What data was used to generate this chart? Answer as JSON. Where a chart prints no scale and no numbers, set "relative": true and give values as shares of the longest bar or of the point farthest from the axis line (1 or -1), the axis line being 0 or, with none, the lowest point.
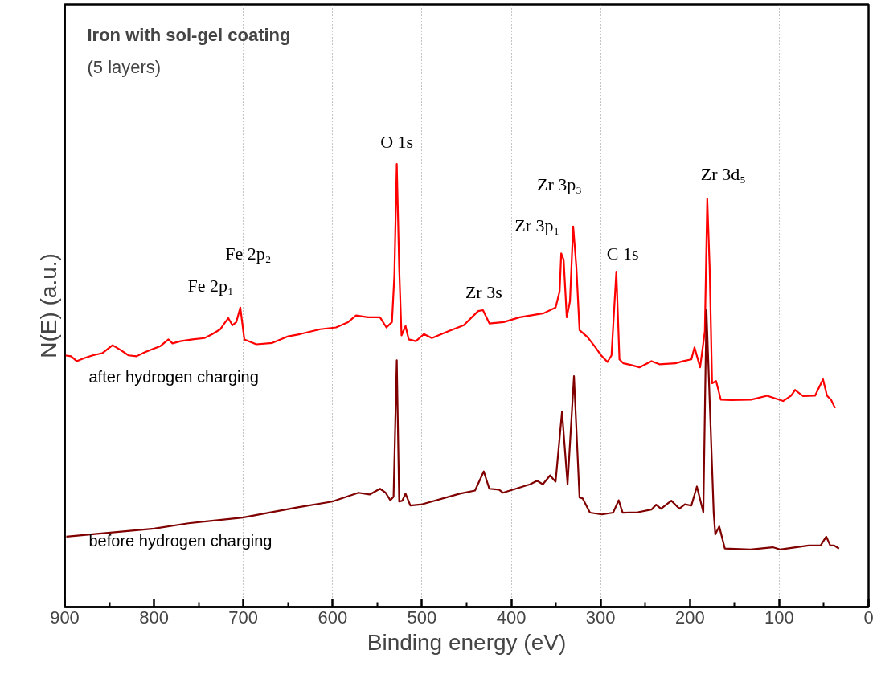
{
  "chart_data": {
    "type": "line",
    "title": "Iron with sol-gel coating",
    "subtitle": "(5 layers)",
    "xlabel": "Binding energy (eV)",
    "ylabel": "N(E) (a.u.)",
    "relative": true,
    "xlim": [
      900,
      0
    ],
    "xticks": [
      900,
      800,
      700,
      600,
      500,
      400,
      300,
      200,
      100,
      0
    ],
    "grid": "x",
    "tick_labels": "x",
    "line_style": "solid",
    "marker": "none",
    "series": [
      {
        "name": "after hydrogen charging",
        "color": "#ff0000",
        "x": [
          900,
          892.9,
          886.6,
          877.7,
          868.7,
          858,
          846.4,
          837.4,
          828.5,
          819.6,
          810.6,
          801.7,
          792.8,
          783.8,
          779.3,
          770.4,
          757,
          743.6,
          734.7,
          725.7,
          721.3,
          716.8,
          712.3,
          707.9,
          703.4,
          698.9,
          685.5,
          667.6,
          649.8,
          636.4,
          614,
          596.2,
          582.7,
          573.8,
          560.4,
          547,
          539.8,
          533.6,
          530.9,
          528.2,
          525.5,
          522.9,
          518.4,
          514.8,
          506.8,
          497.8,
          488.9,
          471,
          453.2,
          437.1,
          431.7,
          424.5,
          408.5,
          390.6,
          363.8,
          350.4,
          345.9,
          344.1,
          341.4,
          337.9,
          334.3,
          330.7,
          327.1,
          323.6,
          314.6,
          305.7,
          299.4,
          292.3,
          287.8,
          282.4,
          278.9,
          274.4,
          265.5,
          256.5,
          243.1,
          234.2,
          216.3,
          207.4,
          198.4,
          194.9,
          188.6,
          183.3,
          180.6,
          177.9,
          175.2,
          170.7,
          165.4,
          153.8,
          131.4,
          113.6,
          95.7,
          86.7,
          82.3,
          73.3,
          59.9,
          51,
          46.5,
          42,
          37.5
        ],
        "values": [
          0.568,
          0.566,
          0.555,
          0.562,
          0.568,
          0.573,
          0.591,
          0.58,
          0.568,
          0.566,
          0.575,
          0.582,
          0.589,
          0.604,
          0.595,
          0.6,
          0.604,
          0.607,
          0.616,
          0.627,
          0.64,
          0.652,
          0.636,
          0.643,
          0.676,
          0.604,
          0.593,
          0.596,
          0.611,
          0.616,
          0.627,
          0.631,
          0.643,
          0.658,
          0.654,
          0.654,
          0.631,
          0.643,
          0.748,
          1.0,
          0.766,
          0.613,
          0.634,
          0.604,
          0.6,
          0.616,
          0.607,
          0.622,
          0.636,
          0.668,
          0.67,
          0.64,
          0.643,
          0.654,
          0.663,
          0.676,
          0.712,
          0.798,
          0.784,
          0.654,
          0.69,
          0.859,
          0.766,
          0.625,
          0.609,
          0.586,
          0.568,
          0.553,
          0.568,
          0.757,
          0.559,
          0.55,
          0.546,
          0.541,
          0.555,
          0.548,
          0.55,
          0.555,
          0.559,
          0.586,
          0.541,
          0.622,
          0.921,
          0.766,
          0.505,
          0.51,
          0.468,
          0.467,
          0.468,
          0.477,
          0.465,
          0.477,
          0.49,
          0.476,
          0.477,
          0.514,
          0.477,
          0.468,
          0.449
        ]
      },
      {
        "name": "before hydrogen charging",
        "color": "#800000",
        "x": [
          898.2,
          800,
          761.5,
          700.7,
          639,
          600.6,
          571.1,
          558.6,
          547,
          540.7,
          535.4,
          531.8,
          528.2,
          525.5,
          522,
          518.4,
          513,
          499.6,
          457.6,
          440.6,
          430.8,
          424.6,
          413.8,
          409.4,
          379,
          370.9,
          364.7,
          356.6,
          350.4,
          343.2,
          337,
          329.8,
          323.6,
          320,
          311.9,
          298.5,
          286,
          279.8,
          275.3,
          258.3,
          243.1,
          237.8,
          232.4,
          220.8,
          211.9,
          205.6,
          198.4,
          192.2,
          185,
          181.5,
          173.4,
          171.6,
          167.2,
          160.9,
          132.3,
          107.3,
          99.2,
          67.1,
          53.7,
          47.4,
          42.9,
          38.5,
          33.1
        ],
        "values": [
          0.159,
          0.177,
          0.189,
          0.202,
          0.225,
          0.238,
          0.258,
          0.254,
          0.267,
          0.258,
          0.241,
          0.249,
          0.557,
          0.238,
          0.24,
          0.256,
          0.229,
          0.232,
          0.256,
          0.263,
          0.306,
          0.267,
          0.265,
          0.258,
          0.277,
          0.285,
          0.277,
          0.297,
          0.283,
          0.441,
          0.277,
          0.521,
          0.247,
          0.245,
          0.213,
          0.209,
          0.213,
          0.241,
          0.213,
          0.214,
          0.22,
          0.231,
          0.222,
          0.24,
          0.222,
          0.232,
          0.229,
          0.272,
          0.214,
          0.67,
          0.213,
          0.164,
          0.182,
          0.132,
          0.13,
          0.135,
          0.13,
          0.139,
          0.139,
          0.159,
          0.139,
          0.139,
          0.132
        ]
      }
    ],
    "annotations": [
      {
        "text": "O 1s",
        "x": 528.2,
        "y": 1.0
      },
      {
        "text": "Zr 3p₃",
        "x": 330.7,
        "y": 0.859
      },
      {
        "text": "Zr 3p₁",
        "x": 344.1,
        "y": 0.798
      },
      {
        "text": "C 1s",
        "x": 282.4,
        "y": 0.757
      },
      {
        "text": "Zr 3d₅",
        "x": 180.6,
        "y": 0.921
      },
      {
        "text": "Zr 3s",
        "x": 431.7,
        "y": 0.67
      },
      {
        "text": "Fe 2p₁",
        "x": 716.8,
        "y": 0.652
      },
      {
        "text": "Fe 2p₂",
        "x": 703.4,
        "y": 0.676
      }
    ]
  }
}
